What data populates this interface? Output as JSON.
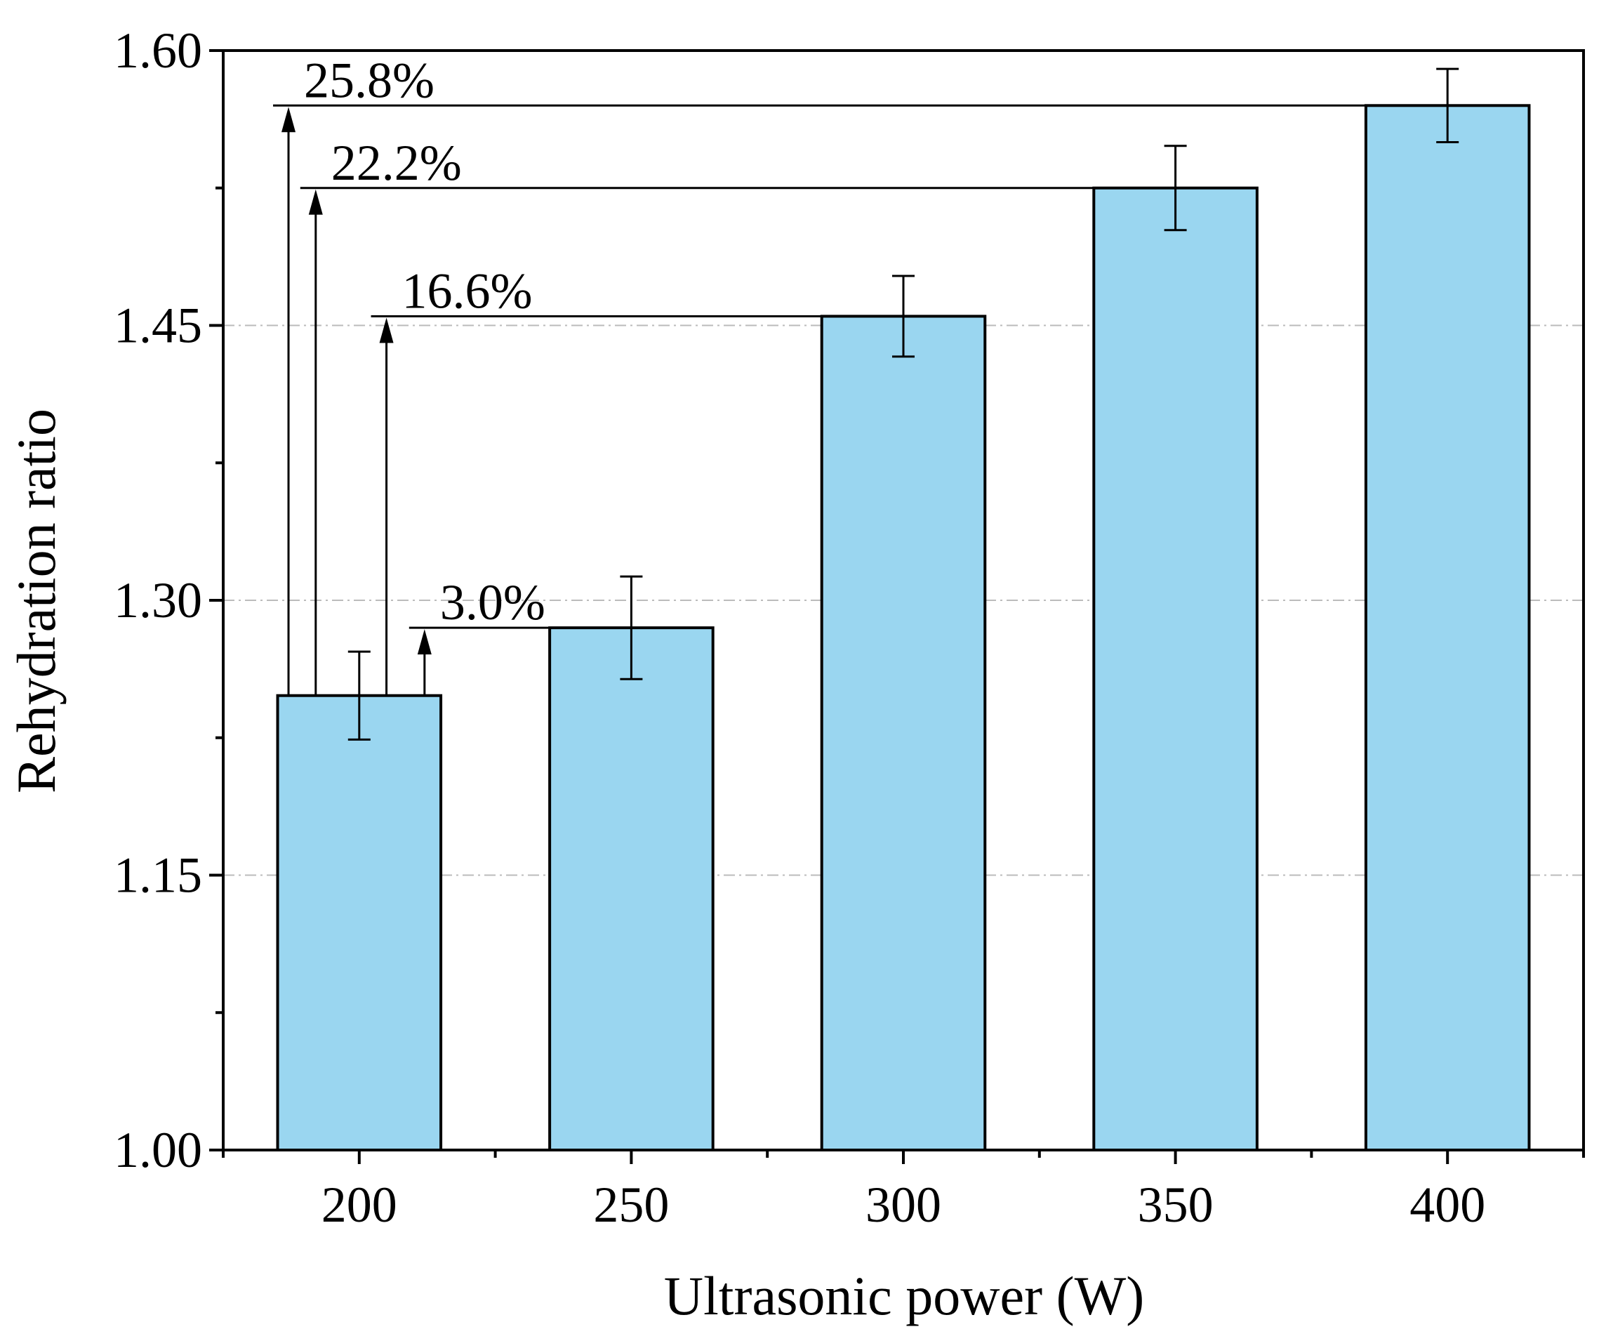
{
  "chart_data": {
    "type": "bar",
    "xlabel": "Ultrasonic power (W)",
    "ylabel": "Rehydration ratio",
    "categories": [
      "200",
      "250",
      "300",
      "350",
      "400"
    ],
    "x_values": [
      200,
      250,
      300,
      350,
      400
    ],
    "xlim": [
      175,
      425
    ],
    "x_major_ticks": [
      200,
      250,
      300,
      350,
      400
    ],
    "x_minor_ticks": [
      175,
      225,
      275,
      325,
      375,
      425
    ],
    "values": [
      1.248,
      1.285,
      1.455,
      1.525,
      1.57
    ],
    "errors": [
      0.024,
      0.028,
      0.022,
      0.023,
      0.02
    ],
    "bar_width_units": 30,
    "ylim": [
      1.0,
      1.6
    ],
    "y_major_ticks": [
      1.0,
      1.15,
      1.3,
      1.45,
      1.6
    ],
    "y_tick_labels": [
      "1.00",
      "1.15",
      "1.30",
      "1.45",
      "1.60"
    ],
    "y_minor_ticks": [
      1.075,
      1.225,
      1.375,
      1.525
    ],
    "gridlines_y": [
      1.15,
      1.3,
      1.45
    ],
    "annotations": [
      {
        "text": "3.0%",
        "from_x": 212,
        "to_value": 1.285
      },
      {
        "text": "16.6%",
        "from_x": 205,
        "to_value": 1.455
      },
      {
        "text": "22.2%",
        "from_x": 192,
        "to_value": 1.525
      },
      {
        "text": "25.8%",
        "from_x": 187,
        "to_value": 1.57
      }
    ],
    "colors": {
      "bar_fill": "#9AD6F0",
      "bar_stroke": "#000000",
      "grid": "#BBBBBB",
      "axis": "#000000"
    }
  }
}
